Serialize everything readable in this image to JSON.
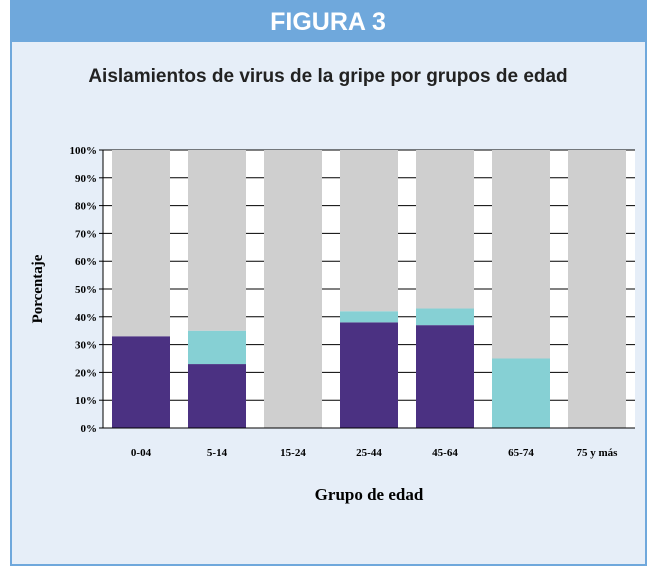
{
  "chart_data": {
    "type": "stacked_bar",
    "figure_label": "FIGURA 3",
    "title": "Aislamientos de virus de la gripe por grupos de edad",
    "x_label": "Grupo de edad",
    "y_label": "Porcentaje",
    "categories": [
      "0-04",
      "5-14",
      "15-24",
      "25-44",
      "45-64",
      "65-74",
      "75 y más"
    ],
    "series": [
      {
        "color": "#4b3182",
        "values": [
          33,
          23,
          0,
          38,
          37,
          0,
          0
        ]
      },
      {
        "color": "#86d0d4",
        "values": [
          0,
          12,
          0,
          4,
          6,
          25,
          0
        ]
      },
      {
        "color": "#cfcfcf",
        "values": [
          67,
          65,
          100,
          58,
          57,
          75,
          100
        ]
      }
    ],
    "ylim": [
      0,
      100
    ],
    "yticks": [
      {
        "value": 0,
        "label": "0%"
      },
      {
        "value": 10,
        "label": "10%"
      },
      {
        "value": 20,
        "label": "20%"
      },
      {
        "value": 30,
        "label": "30%"
      },
      {
        "value": 40,
        "label": "40%"
      },
      {
        "value": 50,
        "label": "50%"
      },
      {
        "value": 60,
        "label": "60%"
      },
      {
        "value": 70,
        "label": "70%"
      },
      {
        "value": 80,
        "label": "80%"
      },
      {
        "value": 90,
        "label": "90%"
      },
      {
        "value": 100,
        "label": "100%"
      }
    ],
    "grid": true
  }
}
